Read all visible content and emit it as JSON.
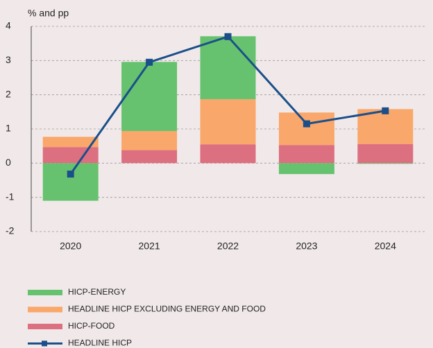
{
  "chart_data": {
    "type": "bar",
    "stacked": true,
    "y_label": "% and pp",
    "categories": [
      "2020",
      "2021",
      "2022",
      "2023",
      "2024"
    ],
    "series": [
      {
        "name": "HICP-ENERGY",
        "color": "#66c26e",
        "values": [
          -1.1,
          2.02,
          1.84,
          -0.32,
          -0.02
        ]
      },
      {
        "name": "HEADLINE HICP EXCLUDING ENERGY AND FOOD",
        "color": "#f9a76a",
        "values": [
          0.3,
          0.56,
          1.32,
          0.95,
          1.02
        ]
      },
      {
        "name": "HICP-FOOD",
        "color": "#dc6f80",
        "values": [
          0.47,
          0.38,
          0.55,
          0.53,
          0.56
        ]
      },
      {
        "name": "HEADLINE HICP",
        "type": "line",
        "color": "#1b4f8a",
        "values": [
          -0.32,
          2.95,
          3.7,
          1.15,
          1.53
        ]
      }
    ],
    "ylim": [
      -2,
      4
    ],
    "yticks": [
      -2,
      -1,
      0,
      1,
      2,
      3,
      4
    ],
    "grid": true
  }
}
